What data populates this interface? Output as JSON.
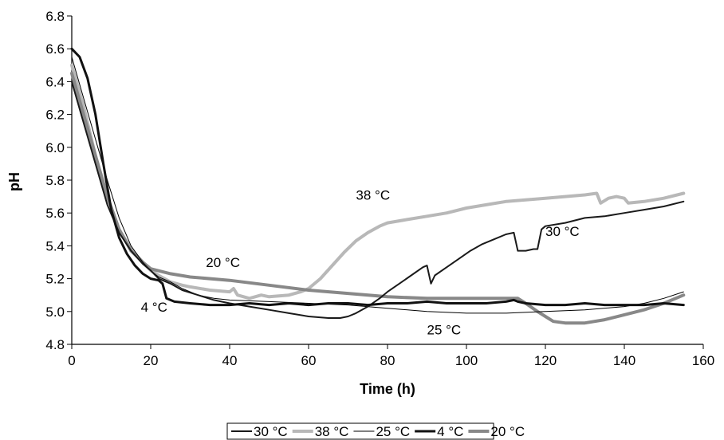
{
  "chart_data": {
    "type": "line",
    "xlabel": "Time (h)",
    "ylabel": "pH",
    "xlim": [
      0,
      160
    ],
    "ylim": [
      4.8,
      6.8
    ],
    "xticks": [
      0,
      20,
      40,
      60,
      80,
      100,
      120,
      140,
      160
    ],
    "yticks": [
      "4.8",
      "5.0",
      "5.2",
      "5.4",
      "5.6",
      "5.8",
      "6.0",
      "6.2",
      "6.4",
      "6.6",
      "6.8"
    ],
    "grid": false,
    "legend_position": "bottom",
    "series": [
      {
        "name": "30 °C",
        "color": "#1a1a1a",
        "stroke": 2,
        "x": [
          0,
          3,
          6,
          9,
          12,
          15,
          18,
          20,
          22,
          25,
          28,
          32,
          36,
          40,
          45,
          50,
          55,
          60,
          65,
          68,
          70,
          72,
          75,
          78,
          80,
          83,
          86,
          89,
          90,
          91,
          92,
          95,
          98,
          101,
          104,
          107,
          110,
          112,
          113,
          115,
          117,
          118,
          119,
          120,
          125,
          130,
          135,
          140,
          145,
          150,
          155
        ],
        "values": [
          6.4,
          6.15,
          5.9,
          5.65,
          5.48,
          5.37,
          5.29,
          5.25,
          5.2,
          5.17,
          5.13,
          5.1,
          5.07,
          5.05,
          5.03,
          5.01,
          4.99,
          4.97,
          4.96,
          4.96,
          4.97,
          4.99,
          5.03,
          5.08,
          5.12,
          5.17,
          5.22,
          5.27,
          5.28,
          5.17,
          5.22,
          5.27,
          5.32,
          5.37,
          5.41,
          5.44,
          5.47,
          5.48,
          5.37,
          5.37,
          5.38,
          5.38,
          5.5,
          5.52,
          5.54,
          5.57,
          5.58,
          5.6,
          5.62,
          5.64,
          5.67
        ]
      },
      {
        "name": "38 °C",
        "color": "#b8b8b8",
        "stroke": 4,
        "x": [
          0,
          3,
          6,
          9,
          12,
          15,
          18,
          20,
          22,
          25,
          28,
          30,
          35,
          40,
          41,
          42,
          45,
          48,
          50,
          55,
          58,
          60,
          63,
          66,
          69,
          72,
          75,
          78,
          80,
          85,
          90,
          95,
          100,
          105,
          110,
          115,
          120,
          125,
          130,
          133,
          134,
          136,
          138,
          140,
          141,
          145,
          150,
          155
        ],
        "values": [
          6.5,
          6.25,
          5.95,
          5.7,
          5.5,
          5.38,
          5.3,
          5.25,
          5.22,
          5.18,
          5.16,
          5.15,
          5.13,
          5.12,
          5.14,
          5.1,
          5.08,
          5.1,
          5.09,
          5.1,
          5.12,
          5.14,
          5.2,
          5.28,
          5.36,
          5.43,
          5.48,
          5.52,
          5.54,
          5.56,
          5.58,
          5.6,
          5.63,
          5.65,
          5.67,
          5.68,
          5.69,
          5.7,
          5.71,
          5.72,
          5.66,
          5.69,
          5.7,
          5.69,
          5.66,
          5.67,
          5.69,
          5.72
        ]
      },
      {
        "name": "25 °C",
        "color": "#000000",
        "stroke": 1,
        "x": [
          0,
          3,
          6,
          9,
          12,
          15,
          18,
          20,
          22,
          25,
          28,
          32,
          36,
          40,
          50,
          60,
          70,
          80,
          90,
          100,
          110,
          120,
          130,
          140,
          145,
          150,
          155
        ],
        "values": [
          6.55,
          6.3,
          6.05,
          5.8,
          5.57,
          5.4,
          5.3,
          5.25,
          5.21,
          5.18,
          5.14,
          5.1,
          5.08,
          5.07,
          5.06,
          5.05,
          5.04,
          5.02,
          5.0,
          4.99,
          4.99,
          5.0,
          5.01,
          5.03,
          5.05,
          5.08,
          5.12
        ]
      },
      {
        "name": "4 °C",
        "color": "#111111",
        "stroke": 3,
        "x": [
          0,
          2,
          4,
          6,
          8,
          10,
          12,
          14,
          16,
          18,
          20,
          22,
          23,
          24,
          26,
          30,
          35,
          40,
          45,
          50,
          55,
          60,
          65,
          70,
          75,
          80,
          85,
          90,
          95,
          100,
          105,
          110,
          112,
          113,
          115,
          120,
          125,
          130,
          135,
          140,
          145,
          150,
          155
        ],
        "values": [
          6.6,
          6.55,
          6.42,
          6.2,
          5.9,
          5.62,
          5.45,
          5.35,
          5.28,
          5.23,
          5.2,
          5.19,
          5.17,
          5.08,
          5.06,
          5.05,
          5.04,
          5.04,
          5.05,
          5.04,
          5.05,
          5.04,
          5.05,
          5.05,
          5.04,
          5.05,
          5.05,
          5.06,
          5.05,
          5.05,
          5.05,
          5.06,
          5.07,
          5.06,
          5.05,
          5.04,
          5.04,
          5.05,
          5.04,
          5.04,
          5.04,
          5.05,
          5.04
        ]
      },
      {
        "name": "20 °C",
        "color": "#888888",
        "stroke": 4,
        "x": [
          0,
          3,
          6,
          9,
          12,
          15,
          18,
          20,
          25,
          30,
          40,
          50,
          60,
          70,
          80,
          90,
          100,
          110,
          113,
          115,
          118,
          120,
          122,
          125,
          130,
          135,
          140,
          145,
          150,
          155
        ],
        "values": [
          6.45,
          6.2,
          5.95,
          5.7,
          5.5,
          5.37,
          5.3,
          5.26,
          5.23,
          5.21,
          5.19,
          5.16,
          5.13,
          5.11,
          5.09,
          5.08,
          5.08,
          5.08,
          5.08,
          5.05,
          5.0,
          4.97,
          4.94,
          4.93,
          4.93,
          4.95,
          4.98,
          5.01,
          5.05,
          5.1
        ]
      }
    ],
    "annotations": [
      {
        "text": "38 °C",
        "x": 72,
        "y": 5.68
      },
      {
        "text": "30 °C",
        "x": 120,
        "y": 5.46
      },
      {
        "text": "20 °C",
        "x": 34,
        "y": 5.27
      },
      {
        "text": "4 °C",
        "x": 17.5,
        "y": 5.0
      },
      {
        "text": "25 °C",
        "x": 90,
        "y": 4.86
      }
    ]
  }
}
